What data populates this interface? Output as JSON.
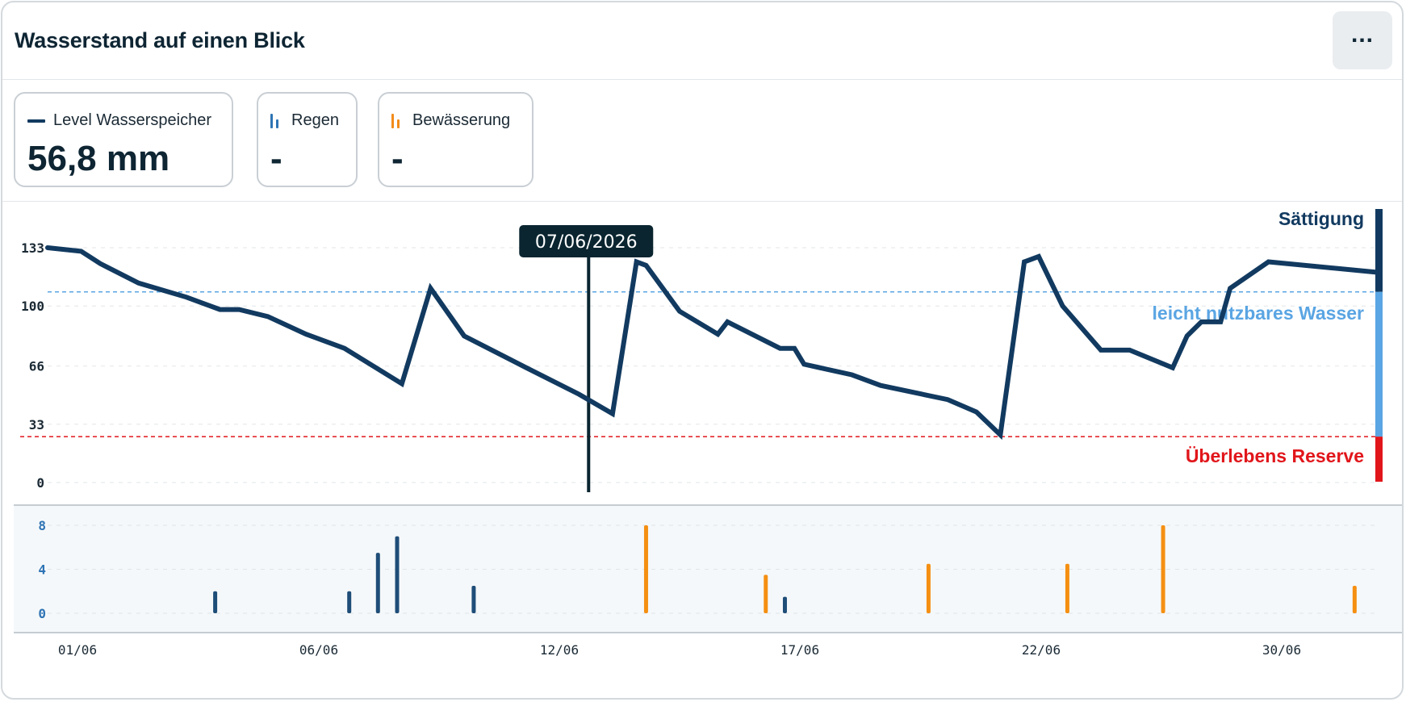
{
  "widget": {
    "title": "Wasserstand auf einen Blick",
    "menu_icon": "more-horizontal-icon"
  },
  "stats": {
    "level": {
      "label": "Level Wasserspeicher",
      "value": "56,8 mm",
      "color": "#123a60"
    },
    "rain": {
      "label": "Regen",
      "value": "-",
      "color": "#2f74b5"
    },
    "irrigation": {
      "label": "Bewässerung",
      "value": "-",
      "color": "#f28c1a"
    }
  },
  "colors": {
    "line": "#123a60",
    "rain": "#1e4d78",
    "irrigation": "#f58f12",
    "saturation": "#123a60",
    "easy_water": "#5aa5e3",
    "reserve": "#e1161b",
    "tooltip_bg": "#0a2530"
  },
  "chart_data": [
    {
      "type": "line",
      "series": [
        {
          "name": "Level Wasserspeicher",
          "points": [
            [
              0.0,
              133
            ],
            [
              0.7,
              131
            ],
            [
              1.1,
              124
            ],
            [
              1.9,
              113
            ],
            [
              2.9,
              105
            ],
            [
              3.6,
              98
            ],
            [
              4.0,
              98
            ],
            [
              4.6,
              94
            ],
            [
              5.4,
              84
            ],
            [
              6.2,
              76
            ],
            [
              7.4,
              56
            ],
            [
              8.0,
              110
            ],
            [
              8.7,
              83
            ],
            [
              10.0,
              65
            ],
            [
              11.1,
              50
            ],
            [
              11.8,
              39
            ],
            [
              12.3,
              125
            ],
            [
              12.5,
              123
            ],
            [
              13.2,
              97
            ],
            [
              14.0,
              84
            ],
            [
              14.2,
              91
            ],
            [
              15.3,
              76
            ],
            [
              15.6,
              76
            ],
            [
              15.8,
              67
            ],
            [
              16.8,
              61
            ],
            [
              17.4,
              55
            ],
            [
              18.8,
              47
            ],
            [
              19.4,
              40
            ],
            [
              19.9,
              27
            ],
            [
              20.4,
              125
            ],
            [
              20.7,
              128
            ],
            [
              21.2,
              100
            ],
            [
              22.0,
              75
            ],
            [
              22.6,
              75
            ],
            [
              23.5,
              65
            ],
            [
              23.8,
              83
            ],
            [
              24.1,
              91
            ],
            [
              24.5,
              91
            ],
            [
              24.7,
              110
            ],
            [
              25.5,
              125
            ],
            [
              27.8,
              119
            ]
          ]
        }
      ],
      "x_unit": "day index (0 = 01/06/2026)",
      "y_ticks": [
        133,
        100,
        66,
        33,
        0
      ],
      "ylim": [
        0,
        133
      ],
      "thresholds": [
        {
          "name": "Sättigung",
          "value": 150
        },
        {
          "name": "leicht nutzbares Wasser",
          "value": 108
        },
        {
          "name": "Überlebens Reserve",
          "value": 26
        }
      ],
      "cursor": {
        "x": 11.3,
        "label": "07/06/2026"
      },
      "grid": true
    },
    {
      "type": "bar",
      "series": [
        {
          "name": "Regen",
          "points": [
            [
              3.5,
              2
            ],
            [
              6.3,
              2
            ],
            [
              6.9,
              5.5
            ],
            [
              7.3,
              7
            ],
            [
              8.9,
              2.5
            ],
            [
              15.4,
              1.5
            ]
          ]
        },
        {
          "name": "Bewässerung",
          "points": [
            [
              12.5,
              8
            ],
            [
              15.0,
              3.5
            ],
            [
              18.4,
              4.5
            ],
            [
              21.3,
              4.5
            ],
            [
              23.3,
              8
            ],
            [
              27.3,
              2.5
            ]
          ]
        }
      ],
      "y_ticks": [
        8,
        4,
        0
      ],
      "ylim": [
        0,
        8
      ],
      "x_ticks": [
        "01/06",
        "06/06",
        "12/06",
        "17/06",
        "22/06",
        "30/06"
      ],
      "grid": true
    }
  ]
}
